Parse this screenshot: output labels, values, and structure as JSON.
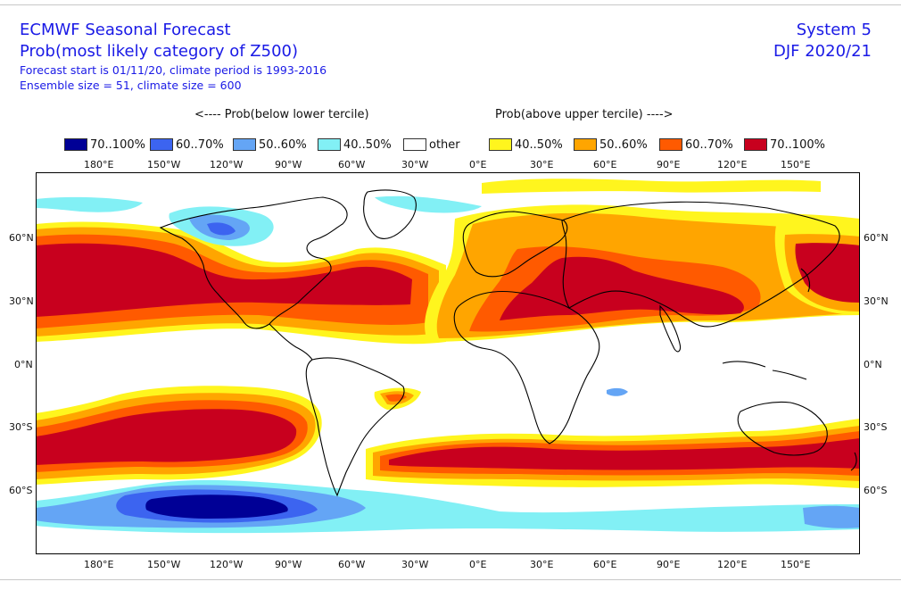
{
  "header": {
    "line1": "ECMWF Seasonal Forecast",
    "line2": "Prob(most likely category of Z500)",
    "line3": "Forecast start is 01/11/20, climate period is 1993-2016",
    "line4": "Ensemble size = 51, climate size = 600",
    "system": "System 5",
    "season": "DJF 2020/21"
  },
  "captions": {
    "below": "<---- Prob(below lower tercile)",
    "above": "Prob(above upper tercile) ---->"
  },
  "legend": [
    {
      "label": "70..100%",
      "color": "#000096"
    },
    {
      "label": "60..70%",
      "color": "#3c64f0"
    },
    {
      "label": "50..60%",
      "color": "#64a5f5"
    },
    {
      "label": "40..50%",
      "color": "#82f0f5"
    },
    {
      "label": "other",
      "color": "#ffffff"
    },
    {
      "label": "40..50%",
      "color": "#fff51e"
    },
    {
      "label": "50..60%",
      "color": "#ffa500"
    },
    {
      "label": "60..70%",
      "color": "#ff5a00"
    },
    {
      "label": "70..100%",
      "color": "#c8001e"
    }
  ],
  "axes": {
    "lon_labels": [
      "180°E",
      "150°W",
      "120°W",
      "90°W",
      "60°W",
      "30°W",
      "0°E",
      "30°E",
      "60°E",
      "90°E",
      "120°E",
      "150°E"
    ],
    "lat_labels": [
      "60°N",
      "30°N",
      "0°N",
      "30°S",
      "60°S"
    ]
  }
}
